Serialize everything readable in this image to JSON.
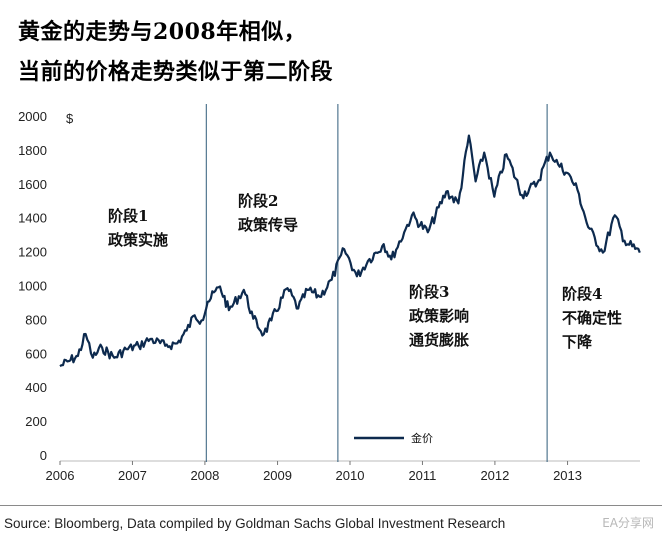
{
  "title_lines": [
    "黄金的走势与2008年相似，",
    "当前的价格走势类似于第二阶段"
  ],
  "source": "Source: Bloomberg, Data compiled by Goldman Sachs Global Investment Research",
  "watermark": "EA分享网",
  "colors": {
    "line": "#0d2a4e",
    "divider": "#2f5b7a",
    "axis": "#bbbbbb"
  },
  "chart_data": {
    "type": "line",
    "title": "",
    "xlabel": "",
    "ylabel": "$",
    "xlim": [
      "2006-01-01",
      "2014-01-01"
    ],
    "ylim": [
      0,
      2000
    ],
    "yticks": [
      0,
      200,
      400,
      600,
      800,
      1000,
      1200,
      1400,
      1600,
      1800,
      2000
    ],
    "xticks": [
      "2006",
      "2007",
      "2008",
      "2009",
      "2010",
      "2011",
      "2012",
      "2013"
    ],
    "grid": false,
    "legend": "bottom-center",
    "series": [
      {
        "name": "金价",
        "points": [
          [
            "2006-01-01",
            530
          ],
          [
            "2006-02-15",
            560
          ],
          [
            "2006-04-01",
            590
          ],
          [
            "2006-05-10",
            720
          ],
          [
            "2006-06-15",
            580
          ],
          [
            "2006-08-01",
            640
          ],
          [
            "2006-10-01",
            580
          ],
          [
            "2006-12-01",
            630
          ],
          [
            "2007-02-01",
            650
          ],
          [
            "2007-04-01",
            690
          ],
          [
            "2007-06-15",
            650
          ],
          [
            "2007-08-15",
            665
          ],
          [
            "2007-10-01",
            740
          ],
          [
            "2007-11-10",
            830
          ],
          [
            "2007-12-15",
            800
          ],
          [
            "2008-01-15",
            910
          ],
          [
            "2008-03-17",
            1000
          ],
          [
            "2008-05-01",
            860
          ],
          [
            "2008-07-15",
            980
          ],
          [
            "2008-09-01",
            810
          ],
          [
            "2008-10-24",
            720
          ],
          [
            "2008-12-01",
            800
          ],
          [
            "2009-02-20",
            990
          ],
          [
            "2009-04-15",
            870
          ],
          [
            "2009-06-01",
            980
          ],
          [
            "2009-08-01",
            940
          ],
          [
            "2009-10-01",
            1040
          ],
          [
            "2009-12-03",
            1220
          ],
          [
            "2010-02-05",
            1060
          ],
          [
            "2010-04-01",
            1150
          ],
          [
            "2010-06-20",
            1250
          ],
          [
            "2010-07-28",
            1160
          ],
          [
            "2010-10-01",
            1320
          ],
          [
            "2010-11-09",
            1420
          ],
          [
            "2011-01-28",
            1320
          ],
          [
            "2011-05-01",
            1560
          ],
          [
            "2011-07-01",
            1490
          ],
          [
            "2011-08-23",
            1890
          ],
          [
            "2011-09-26",
            1620
          ],
          [
            "2011-11-08",
            1790
          ],
          [
            "2011-12-29",
            1530
          ],
          [
            "2012-02-28",
            1780
          ],
          [
            "2012-05-16",
            1540
          ],
          [
            "2012-08-01",
            1610
          ],
          [
            "2012-10-04",
            1790
          ],
          [
            "2012-11-15",
            1720
          ],
          [
            "2012-12-31",
            1670
          ],
          [
            "2013-02-20",
            1570
          ],
          [
            "2013-04-15",
            1350
          ],
          [
            "2013-06-28",
            1200
          ],
          [
            "2013-08-27",
            1420
          ],
          [
            "2013-10-15",
            1270
          ],
          [
            "2013-12-31",
            1200
          ]
        ]
      }
    ],
    "dividers": [
      "2008-01-08",
      "2009-11-01",
      "2012-09-20"
    ],
    "phases": [
      {
        "lines": [
          "阶段1",
          "政策实施"
        ]
      },
      {
        "lines": [
          "阶段2",
          "政策传导"
        ]
      },
      {
        "lines": [
          "阶段3",
          "政策影响",
          "通货膨胀"
        ]
      },
      {
        "lines": [
          "阶段4",
          "不确定性",
          "下降"
        ]
      }
    ]
  }
}
